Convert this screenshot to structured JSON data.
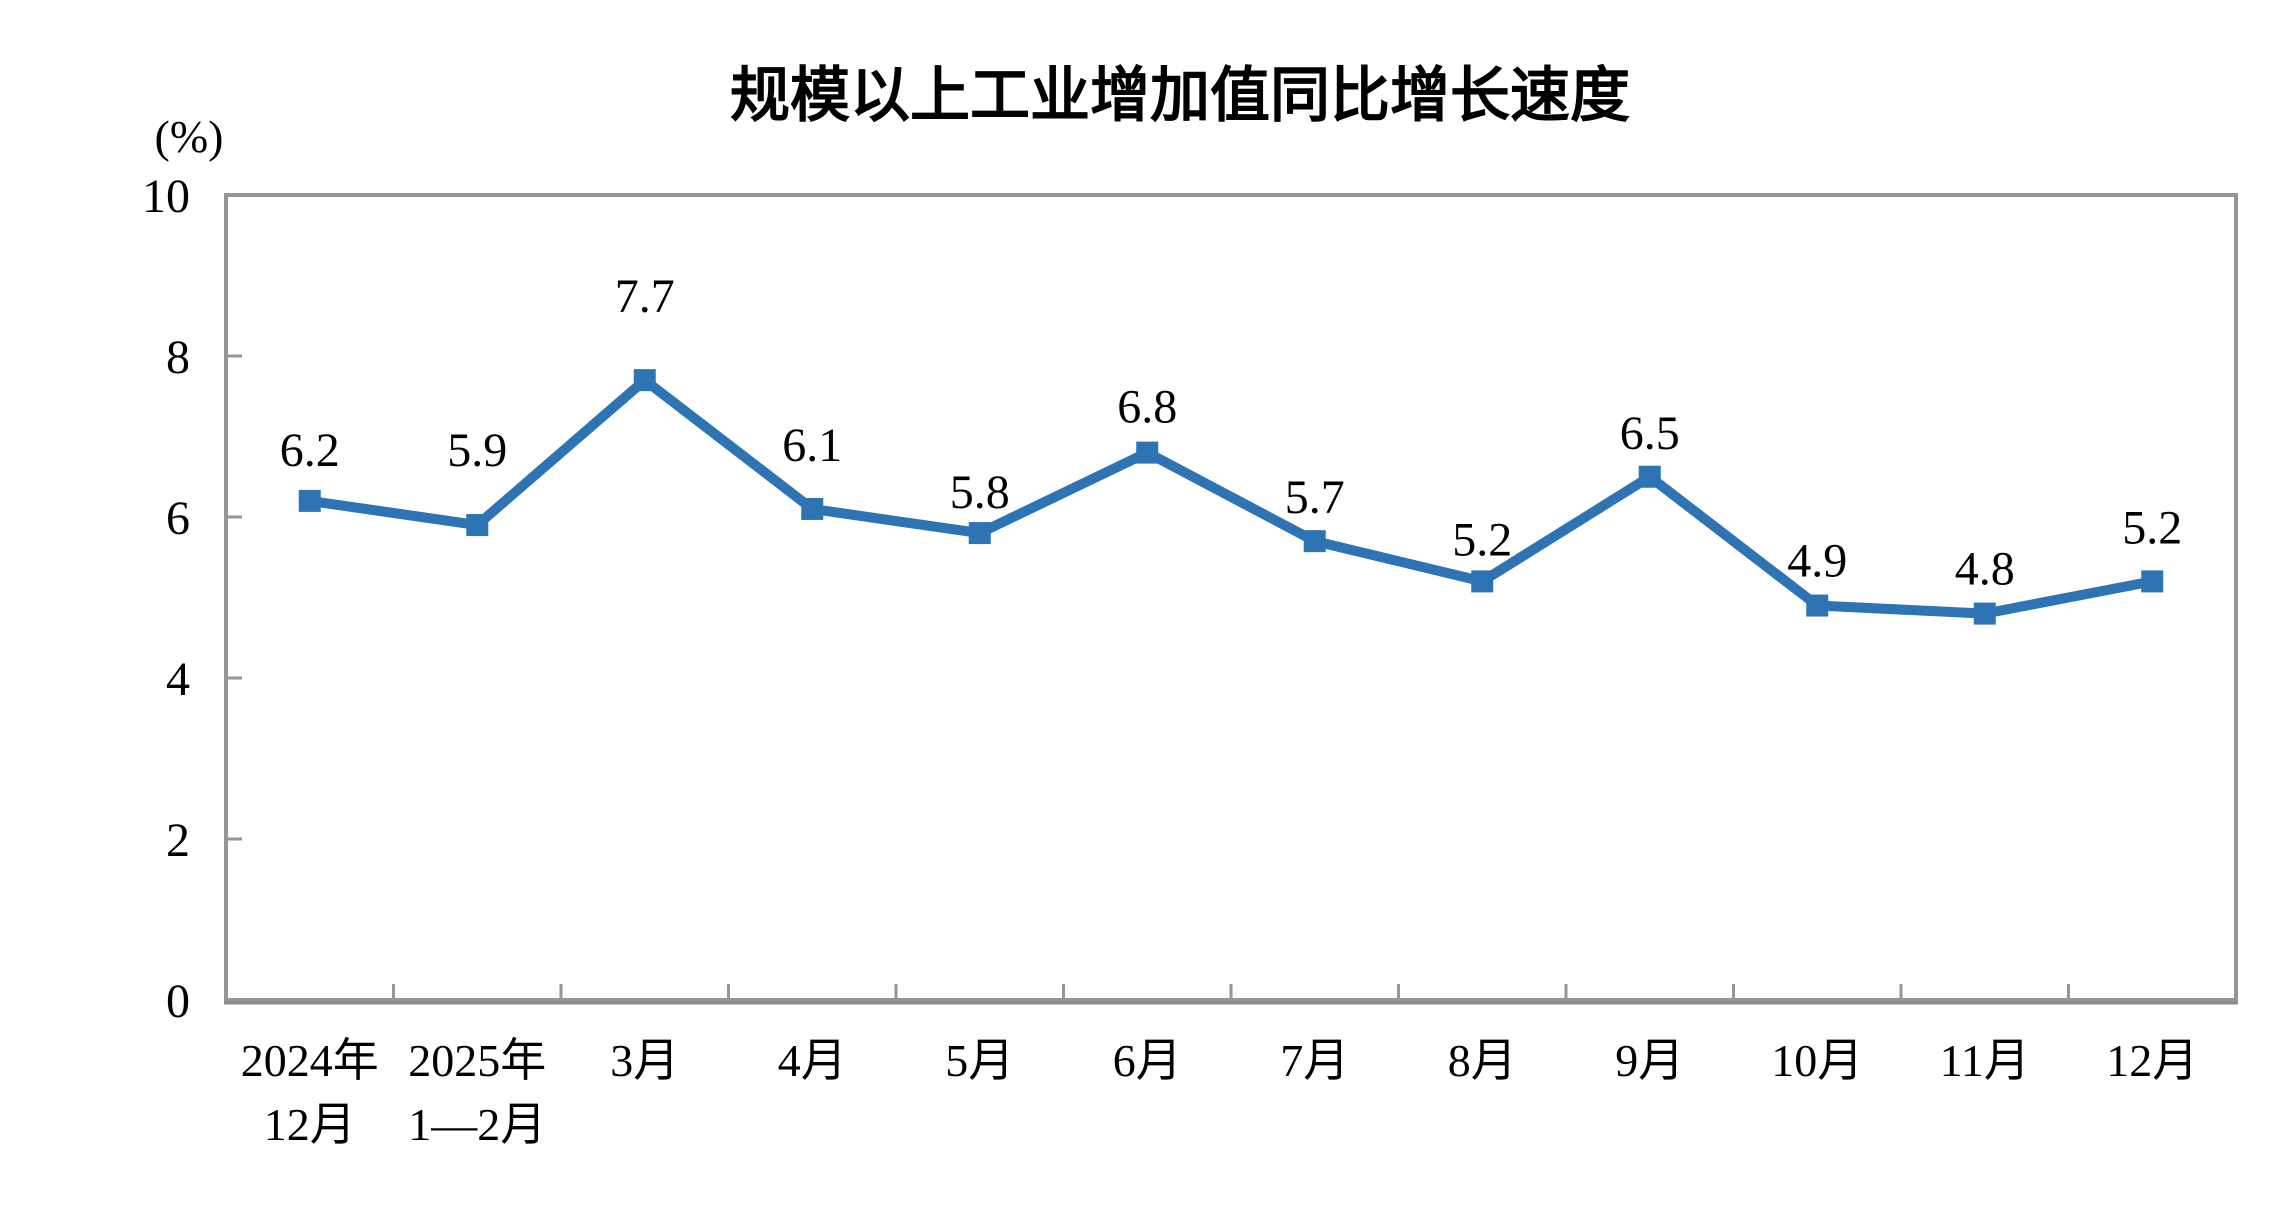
{
  "chart_data": {
    "type": "line",
    "title": "规模以上工业增加值同比增长速度",
    "unit": "(%)",
    "categories": [
      [
        "2024年",
        "12月"
      ],
      [
        "2025年",
        "1—2月"
      ],
      [
        "3月"
      ],
      [
        "4月"
      ],
      [
        "5月"
      ],
      [
        "6月"
      ],
      [
        "7月"
      ],
      [
        "8月"
      ],
      [
        "9月"
      ],
      [
        "10月"
      ],
      [
        "11月"
      ],
      [
        "12月"
      ]
    ],
    "values": [
      6.2,
      5.9,
      7.7,
      6.1,
      5.8,
      6.8,
      5.7,
      5.2,
      6.5,
      4.9,
      4.8,
      5.2
    ],
    "data_labels": [
      "6.2",
      "5.9",
      "7.7",
      "6.1",
      "5.8",
      "6.8",
      "5.7",
      "5.2",
      "6.5",
      "4.9",
      "4.8",
      "5.2"
    ],
    "ylim": [
      0,
      10
    ],
    "yticks": [
      0,
      2,
      4,
      6,
      8,
      10
    ],
    "grid": "off",
    "legend": "none",
    "colors": {
      "line": "#2E74B5",
      "marker": "#2E74B5",
      "axis": "#969696",
      "text": "#000000"
    }
  }
}
